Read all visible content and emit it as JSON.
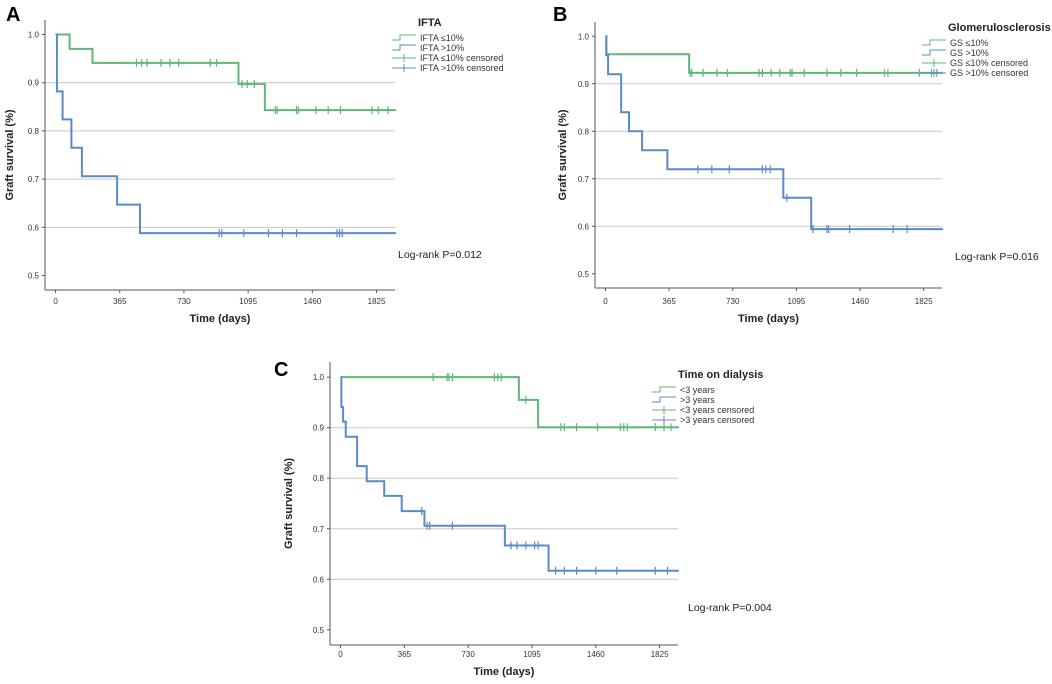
{
  "colors": {
    "green": "#5fb57a",
    "blue": "#5b8ac4",
    "grid": "#c8c8c8",
    "axis": "#555555"
  },
  "chart_data": [
    {
      "type": "line",
      "panel_label": "A",
      "ylabel": "Graft survival (%)",
      "xlabel": "Time (days)",
      "yticks": [
        "0.5",
        "0.6",
        "0.7",
        "0.8",
        "0.9",
        "1.0"
      ],
      "ylim": [
        0.47,
        1.03
      ],
      "xticks": [
        "0",
        "365",
        "730",
        "1095",
        "1460",
        "1825"
      ],
      "xlim": [
        -60,
        1930
      ],
      "grid": true,
      "annotation": "Log-rank P=0.012",
      "legend_title": "IFTA",
      "legend_items": [
        "IFTA ≤10%",
        "IFTA >10%",
        "IFTA ≤10% censored",
        "IFTA >10% censored"
      ],
      "series": [
        {
          "name": "IFTA ≤10%",
          "color": "green",
          "steps": [
            [
              0,
              1.0
            ],
            [
              80,
              0.97
            ],
            [
              210,
              0.941
            ],
            [
              1040,
              0.897
            ],
            [
              1190,
              0.843
            ],
            [
              1935,
              0.843
            ]
          ],
          "censored": [
            [
              460,
              0.941
            ],
            [
              490,
              0.941
            ],
            [
              520,
              0.941
            ],
            [
              600,
              0.941
            ],
            [
              650,
              0.941
            ],
            [
              700,
              0.941
            ],
            [
              880,
              0.941
            ],
            [
              915,
              0.941
            ],
            [
              1060,
              0.897
            ],
            [
              1090,
              0.897
            ],
            [
              1130,
              0.897
            ],
            [
              1250,
              0.843
            ],
            [
              1260,
              0.843
            ],
            [
              1370,
              0.843
            ],
            [
              1380,
              0.843
            ],
            [
              1480,
              0.843
            ],
            [
              1550,
              0.843
            ],
            [
              1620,
              0.843
            ],
            [
              1800,
              0.843
            ],
            [
              1835,
              0.843
            ],
            [
              1890,
              0.843
            ]
          ]
        },
        {
          "name": "IFTA >10%",
          "color": "blue",
          "steps": [
            [
              0,
              1.0
            ],
            [
              8,
              0.882
            ],
            [
              40,
              0.824
            ],
            [
              90,
              0.765
            ],
            [
              150,
              0.706
            ],
            [
              350,
              0.647
            ],
            [
              480,
              0.588
            ],
            [
              1935,
              0.588
            ]
          ],
          "censored": [
            [
              930,
              0.588
            ],
            [
              945,
              0.588
            ],
            [
              1070,
              0.588
            ],
            [
              1210,
              0.588
            ],
            [
              1290,
              0.588
            ],
            [
              1370,
              0.588
            ],
            [
              1600,
              0.588
            ],
            [
              1615,
              0.588
            ],
            [
              1630,
              0.588
            ]
          ]
        }
      ]
    },
    {
      "type": "line",
      "panel_label": "B",
      "ylabel": "Graft survival (%)",
      "xlabel": "Time (days)",
      "yticks": [
        "0.5",
        "0.6",
        "0.7",
        "0.8",
        "0.9",
        "1.0"
      ],
      "ylim": [
        0.47,
        1.03
      ],
      "xticks": [
        "0",
        "365",
        "730",
        "1095",
        "1460",
        "1825"
      ],
      "xlim": [
        -60,
        1930
      ],
      "grid": true,
      "annotation": "Log-rank P=0.016",
      "legend_title": "Glomerulosclerosis",
      "legend_items": [
        "GS ≤10%",
        "GS >10%",
        "GS ≤10% censored",
        "GS >10% censored"
      ],
      "series": [
        {
          "name": "GS ≤10%",
          "color": "green",
          "steps": [
            [
              0,
              1.0
            ],
            [
              5,
              0.962
            ],
            [
              480,
              0.923
            ],
            [
              1935,
              0.923
            ]
          ],
          "censored": [
            [
              485,
              0.923
            ],
            [
              495,
              0.923
            ],
            [
              560,
              0.923
            ],
            [
              640,
              0.923
            ],
            [
              700,
              0.923
            ],
            [
              880,
              0.923
            ],
            [
              900,
              0.923
            ],
            [
              950,
              0.923
            ],
            [
              1000,
              0.923
            ],
            [
              1060,
              0.923
            ],
            [
              1070,
              0.923
            ],
            [
              1140,
              0.923
            ],
            [
              1270,
              0.923
            ],
            [
              1350,
              0.923
            ],
            [
              1440,
              0.923
            ],
            [
              1600,
              0.923
            ],
            [
              1620,
              0.923
            ],
            [
              1800,
              0.923
            ],
            [
              1870,
              0.923
            ],
            [
              1900,
              0.923
            ]
          ]
        },
        {
          "name": "GS >10%",
          "color": "blue",
          "steps": [
            [
              0,
              1.0
            ],
            [
              5,
              0.96
            ],
            [
              15,
              0.92
            ],
            [
              90,
              0.84
            ],
            [
              135,
              0.8
            ],
            [
              210,
              0.76
            ],
            [
              355,
              0.72
            ],
            [
              1020,
              0.66
            ],
            [
              1180,
              0.594
            ],
            [
              1935,
              0.594
            ]
          ],
          "censored": [
            [
              530,
              0.72
            ],
            [
              610,
              0.72
            ],
            [
              710,
              0.72
            ],
            [
              900,
              0.72
            ],
            [
              920,
              0.72
            ],
            [
              945,
              0.72
            ],
            [
              1040,
              0.66
            ],
            [
              1190,
              0.594
            ],
            [
              1270,
              0.594
            ],
            [
              1280,
              0.594
            ],
            [
              1400,
              0.594
            ],
            [
              1650,
              0.594
            ],
            [
              1730,
              0.594
            ]
          ]
        }
      ]
    },
    {
      "type": "line",
      "panel_label": "C",
      "ylabel": "Graft survival (%)",
      "xlabel": "Time (days)",
      "yticks": [
        "0.5",
        "0.6",
        "0.7",
        "0.8",
        "0.9",
        "1.0"
      ],
      "ylim": [
        0.47,
        1.03
      ],
      "xticks": [
        "0",
        "365",
        "730",
        "1095",
        "1460",
        "1825"
      ],
      "xlim": [
        -60,
        1930
      ],
      "grid": true,
      "annotation": "Log-rank P=0.004",
      "legend_title": "Time on dialysis",
      "legend_items": [
        "<3 years",
        ">3 years",
        "<3 years censored",
        ">3 years censored"
      ],
      "series": [
        {
          "name": "<3 years",
          "color": "green",
          "steps": [
            [
              0,
              1.0
            ],
            [
              1020,
              0.955
            ],
            [
              1130,
              0.901
            ],
            [
              1935,
              0.901
            ]
          ],
          "censored": [
            [
              530,
              1.0
            ],
            [
              610,
              1.0
            ],
            [
              620,
              1.0
            ],
            [
              640,
              1.0
            ],
            [
              880,
              1.0
            ],
            [
              900,
              1.0
            ],
            [
              920,
              1.0
            ],
            [
              1060,
              0.955
            ],
            [
              1260,
              0.901
            ],
            [
              1280,
              0.901
            ],
            [
              1350,
              0.901
            ],
            [
              1470,
              0.901
            ],
            [
              1600,
              0.901
            ],
            [
              1620,
              0.901
            ],
            [
              1640,
              0.901
            ],
            [
              1800,
              0.901
            ],
            [
              1850,
              0.901
            ],
            [
              1890,
              0.901
            ]
          ]
        },
        {
          "name": ">3 years",
          "color": "blue",
          "steps": [
            [
              0,
              1.0
            ],
            [
              5,
              0.941
            ],
            [
              15,
              0.912
            ],
            [
              30,
              0.882
            ],
            [
              95,
              0.824
            ],
            [
              150,
              0.794
            ],
            [
              250,
              0.765
            ],
            [
              350,
              0.735
            ],
            [
              480,
              0.706
            ],
            [
              940,
              0.667
            ],
            [
              1190,
              0.617
            ],
            [
              1935,
              0.617
            ]
          ],
          "censored": [
            [
              465,
              0.735
            ],
            [
              495,
              0.706
            ],
            [
              510,
              0.706
            ],
            [
              640,
              0.706
            ],
            [
              975,
              0.667
            ],
            [
              1010,
              0.667
            ],
            [
              1060,
              0.667
            ],
            [
              1110,
              0.667
            ],
            [
              1130,
              0.667
            ],
            [
              1230,
              0.617
            ],
            [
              1280,
              0.617
            ],
            [
              1350,
              0.617
            ],
            [
              1460,
              0.617
            ],
            [
              1580,
              0.617
            ],
            [
              1800,
              0.617
            ],
            [
              1870,
              0.617
            ]
          ]
        }
      ]
    }
  ]
}
